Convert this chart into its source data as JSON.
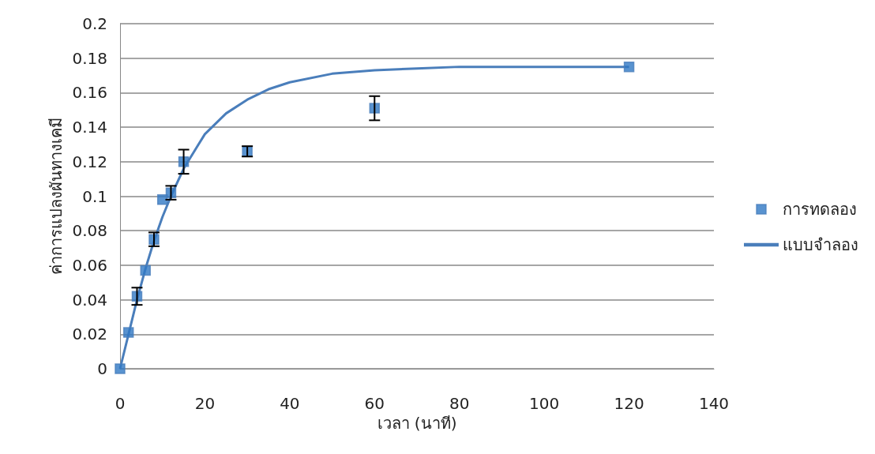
{
  "chart_data": {
    "type": "scatter",
    "xlabel": "เวลา (นาที)",
    "ylabel": "ค่าการแปลงผันทางเคมี",
    "xlim": [
      0,
      140
    ],
    "xticks": [
      0,
      20,
      40,
      60,
      80,
      100,
      120,
      140
    ],
    "ylim": [
      0,
      0.2
    ],
    "yticks": [
      0,
      0.02,
      0.04,
      0.06,
      0.08,
      0.1,
      0.12,
      0.14,
      0.16,
      0.18,
      0.2
    ],
    "grid": "y",
    "legend": "right",
    "series": [
      {
        "name": "การทดลอง",
        "marker": "square",
        "color": "#2f78c4",
        "x": [
          0,
          2,
          4,
          6,
          8,
          10,
          12,
          15,
          30,
          60,
          120
        ],
        "values": [
          0,
          0.021,
          0.042,
          0.057,
          0.075,
          0.098,
          0.102,
          0.12,
          0.126,
          0.151,
          0.175
        ],
        "errors": [
          null,
          null,
          0.005,
          null,
          0.004,
          null,
          0.004,
          0.007,
          0.003,
          0.007,
          null
        ]
      },
      {
        "name": "แบบจำลอง",
        "type": "line",
        "marker": "none",
        "line_style": "solid",
        "color": "#4a7ebb",
        "x": [
          0,
          2,
          4,
          6,
          8,
          10,
          12,
          15,
          18,
          20,
          25,
          30,
          35,
          40,
          50,
          60,
          70,
          80,
          100,
          120
        ],
        "values": [
          0,
          0.02,
          0.04,
          0.058,
          0.074,
          0.088,
          0.1,
          0.116,
          0.128,
          0.136,
          0.148,
          0.156,
          0.162,
          0.166,
          0.171,
          0.173,
          0.174,
          0.175,
          0.175,
          0.175
        ]
      }
    ]
  }
}
